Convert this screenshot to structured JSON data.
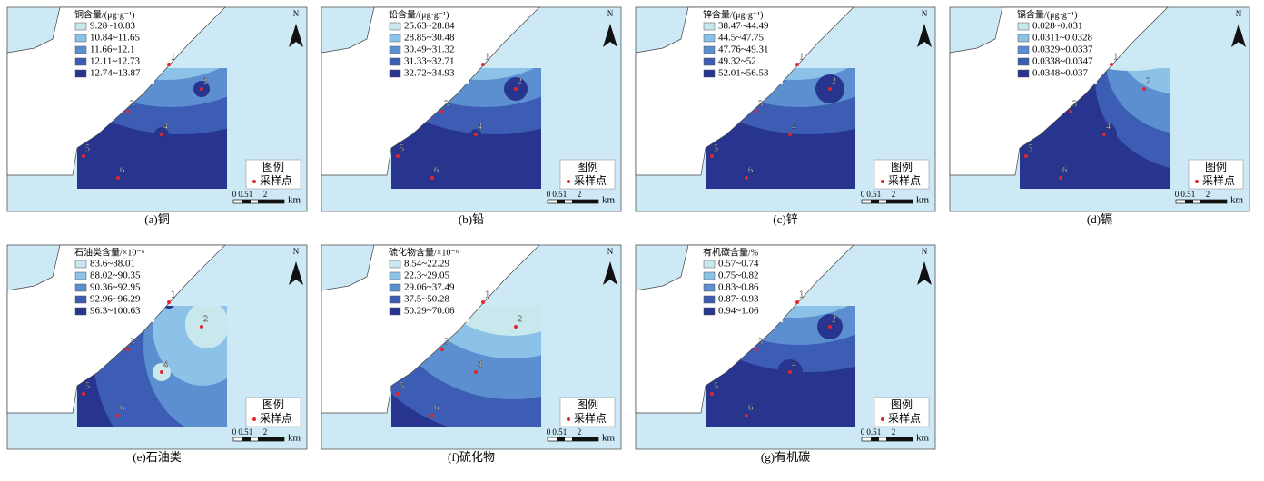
{
  "panels": [
    {
      "caption": "(a)铜",
      "legend_title": "铜含量/(μg·g⁻¹)",
      "classes": [
        "9.28~10.83",
        "10.84~11.65",
        "11.66~12.1",
        "12.11~12.73",
        "12.74~13.87"
      ]
    },
    {
      "caption": "(b)铅",
      "legend_title": "铅含量/(μg·g⁻¹)",
      "classes": [
        "25.63~28.84",
        "28.85~30.48",
        "30.49~31.32",
        "31.33~32.71",
        "32.72~34.93"
      ]
    },
    {
      "caption": "(c)锌",
      "legend_title": "锌含量/(μg·g⁻¹)",
      "classes": [
        "38.47~44.49",
        "44.5~47.75",
        "47.76~49.31",
        "49.32~52",
        "52.01~56.53"
      ]
    },
    {
      "caption": "(d)镉",
      "legend_title": "镉含量/(μg·g⁻¹)",
      "classes": [
        "0.028~0.031",
        "0.0311~0.0328",
        "0.0329~0.0337",
        "0.0338~0.0347",
        "0.0348~0.037"
      ]
    },
    {
      "caption": "(e)石油类",
      "legend_title": "石油类含量/×10⁻⁶",
      "classes": [
        "83.6~88.01",
        "88.02~90.35",
        "90.36~92.95",
        "92.96~96.29",
        "96.3~100.63"
      ]
    },
    {
      "caption": "(f)硫化物",
      "legend_title": "硫化物含量/×10⁻⁶",
      "classes": [
        "8.54~22.29",
        "22.3~29.05",
        "29.06~37.49",
        "37.5~50.28",
        "50.29~70.06"
      ]
    },
    {
      "caption": "(g)有机碳",
      "legend_title": "有机碳含量/%",
      "classes": [
        "0.57~0.74",
        "0.75~0.82",
        "0.83~0.86",
        "0.87~0.93",
        "0.94~1.06"
      ]
    }
  ],
  "common": {
    "legend_heading": "图例",
    "legend_item": "采样点",
    "point_labels": [
      "1",
      "2",
      "3",
      "4",
      "5",
      "6"
    ],
    "scale_labels": [
      "0",
      "0.5",
      "1",
      "2"
    ],
    "scale_unit": "km",
    "north": "N"
  }
}
